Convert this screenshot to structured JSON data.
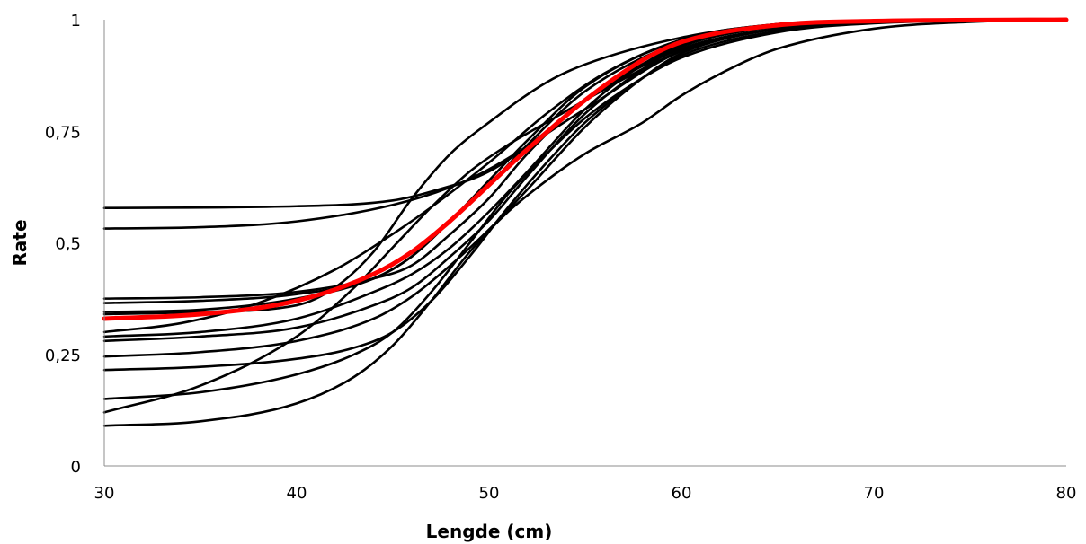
{
  "chart_data": {
    "type": "line",
    "title": "",
    "xlabel": "Lengde (cm)",
    "ylabel": "Rate",
    "xlim": [
      30,
      80
    ],
    "ylim": [
      0,
      1
    ],
    "xticks": [
      30,
      40,
      50,
      60,
      70,
      80
    ],
    "yticks": [
      0,
      0.25,
      0.5,
      0.75,
      1
    ],
    "xtick_labels": [
      "30",
      "40",
      "50",
      "60",
      "70",
      "80"
    ],
    "ytick_labels": [
      "0",
      "0,25",
      "0,5",
      "0,75",
      "1"
    ],
    "grid": false,
    "legend": "none",
    "colors": {
      "curves": "#000000",
      "mean_curve": "#ff0000",
      "axis": "#8c8c8c"
    },
    "series": [
      {
        "color": "#000000",
        "values": [
          [
            30,
            0.578
          ],
          [
            40,
            0.582
          ],
          [
            45,
            0.595
          ],
          [
            47,
            0.615
          ],
          [
            50,
            0.66
          ],
          [
            53,
            0.75
          ],
          [
            55,
            0.82
          ],
          [
            60,
            0.935
          ],
          [
            65,
            0.98
          ],
          [
            70,
            0.995
          ],
          [
            80,
            1.0
          ]
        ]
      },
      {
        "color": "#000000",
        "values": [
          [
            30,
            0.532
          ],
          [
            35,
            0.535
          ],
          [
            40,
            0.548
          ],
          [
            45,
            0.585
          ],
          [
            48,
            0.625
          ],
          [
            50,
            0.665
          ],
          [
            55,
            0.8
          ],
          [
            60,
            0.93
          ],
          [
            65,
            0.98
          ],
          [
            70,
            0.995
          ],
          [
            80,
            1.0
          ]
        ]
      },
      {
        "color": "#000000",
        "values": [
          [
            30,
            0.375
          ],
          [
            35,
            0.378
          ],
          [
            40,
            0.39
          ],
          [
            44,
            0.42
          ],
          [
            46,
            0.45
          ],
          [
            48,
            0.52
          ],
          [
            50,
            0.6
          ],
          [
            52,
            0.7
          ],
          [
            55,
            0.82
          ],
          [
            60,
            0.94
          ],
          [
            65,
            0.985
          ],
          [
            70,
            0.997
          ],
          [
            80,
            1.0
          ]
        ]
      },
      {
        "color": "#000000",
        "values": [
          [
            30,
            0.365
          ],
          [
            35,
            0.37
          ],
          [
            40,
            0.385
          ],
          [
            44,
            0.42
          ],
          [
            46,
            0.47
          ],
          [
            48,
            0.55
          ],
          [
            50,
            0.63
          ],
          [
            52,
            0.72
          ],
          [
            55,
            0.84
          ],
          [
            60,
            0.95
          ],
          [
            65,
            0.988
          ],
          [
            70,
            0.998
          ],
          [
            80,
            1.0
          ]
        ]
      },
      {
        "color": "#000000",
        "values": [
          [
            30,
            0.345
          ],
          [
            35,
            0.35
          ],
          [
            40,
            0.375
          ],
          [
            44,
            0.42
          ],
          [
            46,
            0.47
          ],
          [
            48,
            0.55
          ],
          [
            50,
            0.64
          ],
          [
            52,
            0.73
          ],
          [
            55,
            0.85
          ],
          [
            60,
            0.955
          ],
          [
            65,
            0.99
          ],
          [
            70,
            0.998
          ],
          [
            80,
            1.0
          ]
        ]
      },
      {
        "color": "#000000",
        "values": [
          [
            30,
            0.3
          ],
          [
            34,
            0.32
          ],
          [
            38,
            0.365
          ],
          [
            42,
            0.44
          ],
          [
            45,
            0.52
          ],
          [
            47,
            0.58
          ],
          [
            50,
            0.68
          ],
          [
            53,
            0.79
          ],
          [
            56,
            0.88
          ],
          [
            60,
            0.955
          ],
          [
            65,
            0.99
          ],
          [
            70,
            0.998
          ],
          [
            80,
            1.0
          ]
        ]
      },
      {
        "color": "#000000",
        "values": [
          [
            30,
            0.29
          ],
          [
            35,
            0.3
          ],
          [
            40,
            0.33
          ],
          [
            44,
            0.39
          ],
          [
            46,
            0.43
          ],
          [
            48,
            0.49
          ],
          [
            50,
            0.57
          ],
          [
            52,
            0.66
          ],
          [
            55,
            0.8
          ],
          [
            58,
            0.9
          ],
          [
            60,
            0.945
          ],
          [
            65,
            0.987
          ],
          [
            70,
            0.997
          ],
          [
            80,
            1.0
          ]
        ]
      },
      {
        "color": "#000000",
        "values": [
          [
            30,
            0.28
          ],
          [
            35,
            0.29
          ],
          [
            40,
            0.31
          ],
          [
            44,
            0.36
          ],
          [
            46,
            0.4
          ],
          [
            48,
            0.47
          ],
          [
            50,
            0.55
          ],
          [
            52,
            0.65
          ],
          [
            55,
            0.79
          ],
          [
            58,
            0.89
          ],
          [
            60,
            0.94
          ],
          [
            65,
            0.985
          ],
          [
            70,
            0.997
          ],
          [
            80,
            1.0
          ]
        ]
      },
      {
        "color": "#000000",
        "values": [
          [
            30,
            0.245
          ],
          [
            35,
            0.255
          ],
          [
            40,
            0.28
          ],
          [
            44,
            0.33
          ],
          [
            46,
            0.38
          ],
          [
            48,
            0.45
          ],
          [
            50,
            0.53
          ],
          [
            52,
            0.62
          ],
          [
            55,
            0.76
          ],
          [
            58,
            0.87
          ],
          [
            60,
            0.925
          ],
          [
            65,
            0.98
          ],
          [
            70,
            0.995
          ],
          [
            80,
            1.0
          ]
        ]
      },
      {
        "color": "#000000",
        "values": [
          [
            30,
            0.215
          ],
          [
            35,
            0.222
          ],
          [
            40,
            0.24
          ],
          [
            43,
            0.265
          ],
          [
            45,
            0.3
          ],
          [
            47,
            0.37
          ],
          [
            49,
            0.47
          ],
          [
            51,
            0.58
          ],
          [
            53,
            0.68
          ],
          [
            55,
            0.77
          ],
          [
            58,
            0.87
          ],
          [
            60,
            0.92
          ],
          [
            65,
            0.975
          ],
          [
            70,
            0.993
          ],
          [
            80,
            1.0
          ]
        ]
      },
      {
        "color": "#000000",
        "values": [
          [
            30,
            0.15
          ],
          [
            35,
            0.165
          ],
          [
            40,
            0.205
          ],
          [
            43,
            0.25
          ],
          [
            45,
            0.3
          ],
          [
            47,
            0.39
          ],
          [
            49,
            0.5
          ],
          [
            51,
            0.61
          ],
          [
            53,
            0.7
          ],
          [
            55,
            0.78
          ],
          [
            58,
            0.87
          ],
          [
            60,
            0.915
          ],
          [
            65,
            0.972
          ],
          [
            70,
            0.992
          ],
          [
            80,
            1.0
          ]
        ]
      },
      {
        "color": "#000000",
        "values": [
          [
            30,
            0.12
          ],
          [
            35,
            0.18
          ],
          [
            40,
            0.29
          ],
          [
            43,
            0.4
          ],
          [
            45,
            0.49
          ],
          [
            47,
            0.58
          ],
          [
            49,
            0.66
          ],
          [
            51,
            0.72
          ],
          [
            53,
            0.77
          ],
          [
            55,
            0.82
          ],
          [
            58,
            0.89
          ],
          [
            60,
            0.93
          ],
          [
            65,
            0.98
          ],
          [
            70,
            0.995
          ],
          [
            80,
            1.0
          ]
        ]
      },
      {
        "color": "#000000",
        "values": [
          [
            30,
            0.09
          ],
          [
            35,
            0.1
          ],
          [
            40,
            0.14
          ],
          [
            43,
            0.2
          ],
          [
            45,
            0.27
          ],
          [
            47,
            0.37
          ],
          [
            49,
            0.48
          ],
          [
            51,
            0.57
          ],
          [
            53,
            0.64
          ],
          [
            55,
            0.7
          ],
          [
            58,
            0.77
          ],
          [
            60,
            0.83
          ],
          [
            63,
            0.9
          ],
          [
            65,
            0.935
          ],
          [
            70,
            0.98
          ],
          [
            75,
            0.995
          ],
          [
            80,
            1.0
          ]
        ]
      },
      {
        "color": "#000000",
        "values": [
          [
            30,
            0.34
          ],
          [
            35,
            0.345
          ],
          [
            40,
            0.36
          ],
          [
            42,
            0.4
          ],
          [
            44,
            0.48
          ],
          [
            46,
            0.6
          ],
          [
            48,
            0.7
          ],
          [
            50,
            0.77
          ],
          [
            53,
            0.86
          ],
          [
            55,
            0.9
          ],
          [
            60,
            0.96
          ],
          [
            65,
            0.99
          ],
          [
            70,
            0.998
          ],
          [
            80,
            1.0
          ]
        ]
      },
      {
        "color": "#ff0000",
        "width": 5,
        "values": [
          [
            30,
            0.33
          ],
          [
            35,
            0.34
          ],
          [
            40,
            0.37
          ],
          [
            44,
            0.43
          ],
          [
            46,
            0.48
          ],
          [
            48,
            0.55
          ],
          [
            50,
            0.63
          ],
          [
            52,
            0.71
          ],
          [
            55,
            0.82
          ],
          [
            58,
            0.91
          ],
          [
            60,
            0.95
          ],
          [
            65,
            0.988
          ],
          [
            70,
            0.997
          ],
          [
            80,
            1.0
          ]
        ]
      }
    ]
  }
}
